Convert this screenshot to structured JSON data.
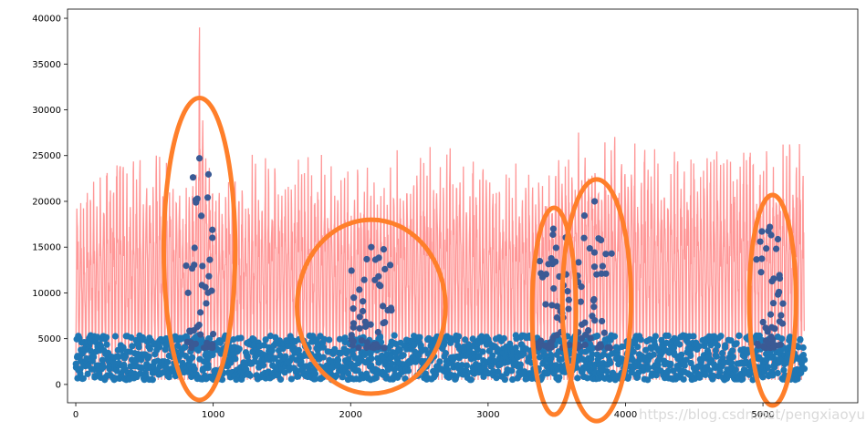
{
  "chart_data": {
    "type": "line",
    "title": "",
    "xlabel": "",
    "ylabel": "",
    "xlim": [
      -60,
      5690
    ],
    "ylim": [
      -2000,
      41000
    ],
    "x_ticks": [
      0,
      1000,
      2000,
      3000,
      4000,
      5000
    ],
    "y_ticks": [
      0,
      5000,
      10000,
      15000,
      20000,
      25000,
      30000,
      35000,
      40000
    ],
    "x_tick_labels": [
      "0",
      "1000",
      "2000",
      "3000",
      "4000",
      "5000"
    ],
    "y_tick_labels": [
      "0",
      "5000",
      "10000",
      "15000",
      "20000",
      "25000",
      "30000",
      "35000",
      "40000"
    ],
    "grid": false,
    "legend": "none",
    "colors": {
      "line": "#ff8c8c",
      "scatter_normal": "#1f77b4",
      "scatter_anomaly": "#3a5a95",
      "ellipse": "#ff7f2a"
    },
    "series": [
      {
        "kind": "line",
        "x_range": [
          0,
          5300
        ],
        "peak_envelope": [
          [
            0,
            23000
          ],
          [
            300,
            26500
          ],
          [
            600,
            27000
          ],
          [
            850,
            26000
          ],
          [
            900,
            39000
          ],
          [
            1000,
            25000
          ],
          [
            1500,
            27000
          ],
          [
            2000,
            25000
          ],
          [
            2600,
            26500
          ],
          [
            3000,
            26500
          ],
          [
            3300,
            26000
          ],
          [
            3800,
            30000
          ],
          [
            4300,
            28000
          ],
          [
            4800,
            28000
          ],
          [
            5300,
            29000
          ]
        ],
        "trough_envelope": [
          [
            0,
            500
          ],
          [
            5300,
            500
          ]
        ]
      },
      {
        "kind": "scatter",
        "x_range": [
          0,
          5300
        ],
        "typical_range": [
          500,
          7000
        ],
        "outlier_clusters": [
          {
            "x_range": [
              800,
              1000
            ],
            "y_max": 24700
          },
          {
            "x_range": [
              2000,
              2300
            ],
            "y_max": 15000
          },
          {
            "x_range": [
              3350,
              3600
            ],
            "y_max": 17000
          },
          {
            "x_range": [
              3650,
              3900
            ],
            "y_max": 20000
          },
          {
            "x_range": [
              4950,
              5150
            ],
            "y_max": 17200
          }
        ]
      }
    ],
    "annotations": [
      {
        "shape": "ellipse",
        "center": [
          900,
          14800
        ],
        "x_radius": 260,
        "y_radius": 16500
      },
      {
        "shape": "ellipse",
        "center": [
          2150,
          8500
        ],
        "x_radius": 540,
        "y_radius": 9500
      },
      {
        "shape": "ellipse",
        "center": [
          3480,
          8000
        ],
        "x_radius": 160,
        "y_radius": 11300
      },
      {
        "shape": "ellipse",
        "center": [
          3790,
          9200
        ],
        "x_radius": 250,
        "y_radius": 13200
      },
      {
        "shape": "ellipse",
        "center": [
          5070,
          9200
        ],
        "x_radius": 170,
        "y_radius": 11500
      }
    ]
  },
  "watermark": "https://blog.csdn.net/pengxiaoyu"
}
